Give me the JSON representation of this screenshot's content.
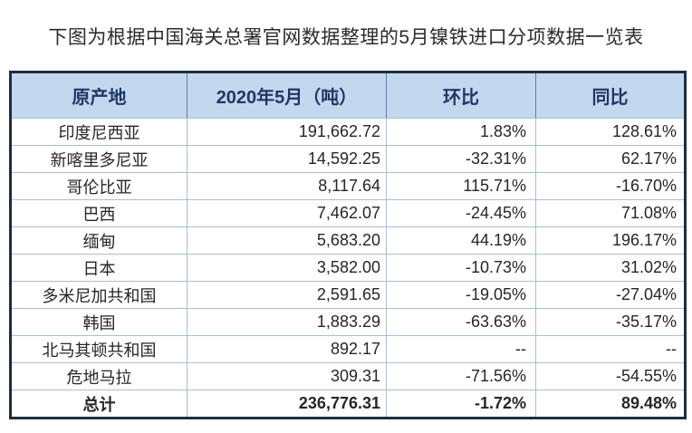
{
  "page_title": "下图为根据中国海关总署官网数据整理的5月镍铁进口分项数据一览表",
  "chart_data": {
    "type": "table",
    "title": "下图为根据中国海关总署官网数据整理的5月镍铁进口分项数据一览表",
    "columns": [
      "原产地",
      "2020年5月（吨）",
      "环比",
      "同比"
    ],
    "rows": [
      [
        "印度尼西亚",
        "191,662.72",
        "1.83%",
        "128.61%"
      ],
      [
        "新喀里多尼亚",
        "14,592.25",
        "-32.31%",
        "62.17%"
      ],
      [
        "哥伦比亚",
        "8,117.64",
        "115.71%",
        "-16.70%"
      ],
      [
        "巴西",
        "7,462.07",
        "-24.45%",
        "71.08%"
      ],
      [
        "缅甸",
        "5,683.20",
        "44.19%",
        "196.17%"
      ],
      [
        "日本",
        "3,582.00",
        "-10.73%",
        "31.02%"
      ],
      [
        "多米尼加共和国",
        "2,591.65",
        "-19.05%",
        "-27.04%"
      ],
      [
        "韩国",
        "1,883.29",
        "-63.63%",
        "-35.17%"
      ],
      [
        "北马其顿共和国",
        "892.17",
        "--",
        "--"
      ],
      [
        "危地马拉",
        "309.31",
        "-71.56%",
        "-54.55%"
      ],
      [
        "总计",
        "236,776.31",
        "-1.72%",
        "89.48%"
      ]
    ],
    "total_row_index": 10
  },
  "colors": {
    "header_bg": "#c3d7ee",
    "header_text": "#1f3864",
    "outer_border": "#1c2e41",
    "grid_line": "#a9bfd3",
    "body_text": "#262626",
    "title_text": "#2b2b2b"
  }
}
